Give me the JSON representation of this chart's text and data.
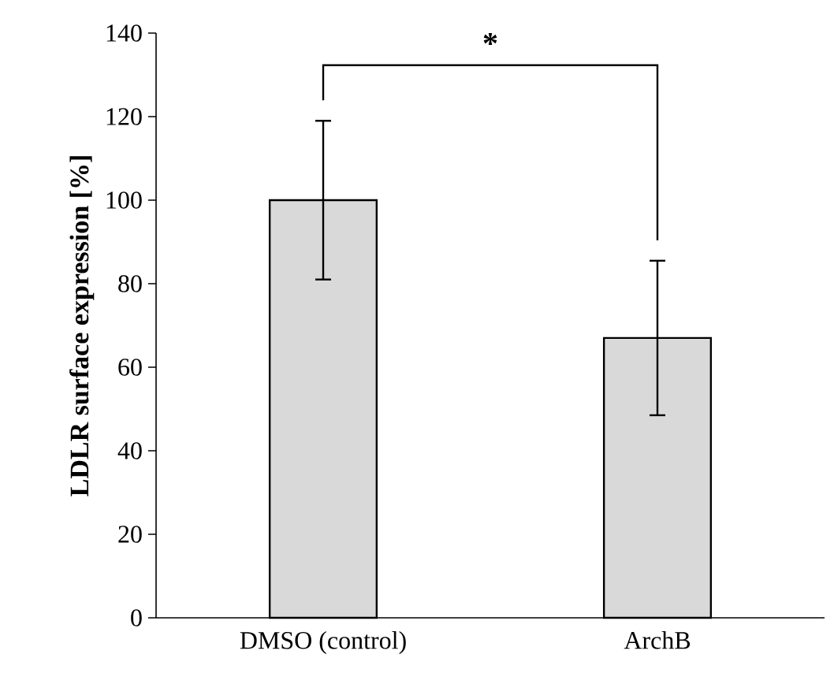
{
  "chart_data": {
    "type": "bar",
    "ylabel": "**LDLR surface expression [%]**",
    "categories": [
      "DMSO (control)",
      "ArchB"
    ],
    "values": [
      100,
      67
    ],
    "errors": [
      19,
      18.5
    ],
    "color": "#d9d9d9",
    "ylim": [
      0,
      140
    ],
    "yticks": [
      0,
      20,
      40,
      60,
      80,
      100,
      120,
      140
    ],
    "grid": false,
    "annotations": [
      "*"
    ]
  }
}
